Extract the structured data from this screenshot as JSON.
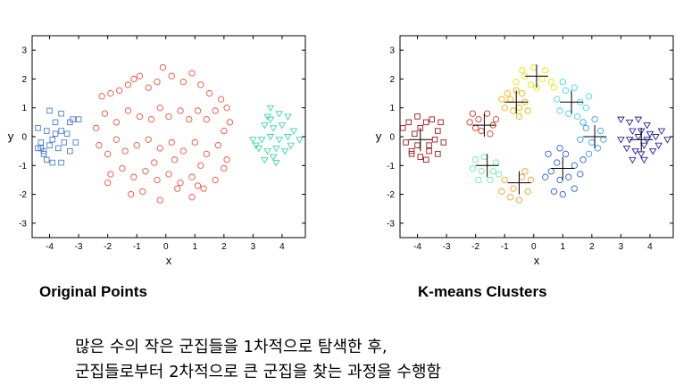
{
  "chart_data": [
    {
      "type": "scatter",
      "title": "Original Points",
      "xlabel": "x",
      "ylabel": "y",
      "xlim": [
        -4.6,
        4.8
      ],
      "ylim": [
        -3.5,
        3.5
      ],
      "xticks": [
        -4,
        -3,
        -2,
        -1,
        0,
        1,
        2,
        3,
        4
      ],
      "yticks": [
        -3,
        -2,
        -1,
        0,
        1,
        2,
        3
      ],
      "grid": false,
      "series": [
        {
          "marker": "square",
          "color": "#4a7bd0",
          "points": [
            [
              -4.3,
              -0.2
            ],
            [
              -4.2,
              -0.5
            ],
            [
              -4.0,
              -0.3
            ],
            [
              -4.3,
              -0.4
            ],
            [
              -3.9,
              -0.1
            ],
            [
              -4.1,
              0.2
            ],
            [
              -4.4,
              0.3
            ],
            [
              -3.8,
              0.5
            ],
            [
              -4.0,
              0.9
            ],
            [
              -3.6,
              0.8
            ],
            [
              -3.3,
              0.5
            ],
            [
              -3.2,
              0.6
            ],
            [
              -3.4,
              0.1
            ],
            [
              -3.6,
              0.2
            ],
            [
              -3.1,
              -0.2
            ],
            [
              -3.3,
              -0.5
            ],
            [
              -3.6,
              -0.9
            ],
            [
              -3.9,
              -0.9
            ],
            [
              -4.2,
              -0.6
            ],
            [
              -3.7,
              -0.4
            ],
            [
              -3.0,
              0.6
            ],
            [
              -3.5,
              -0.2
            ],
            [
              -4.4,
              -0.4
            ],
            [
              -4.1,
              -0.8
            ],
            [
              -3.8,
              0.1
            ]
          ]
        },
        {
          "marker": "circle",
          "color": "#e8553a",
          "points": [
            [
              -2.2,
              1.4
            ],
            [
              -1.9,
              1.5
            ],
            [
              -1.6,
              1.6
            ],
            [
              -1.3,
              1.8
            ],
            [
              -1.1,
              2.0
            ],
            [
              -0.9,
              2.1
            ],
            [
              -0.6,
              1.7
            ],
            [
              -0.3,
              1.9
            ],
            [
              -0.1,
              2.4
            ],
            [
              0.2,
              2.1
            ],
            [
              0.6,
              1.9
            ],
            [
              0.9,
              2.2
            ],
            [
              1.2,
              1.8
            ],
            [
              1.5,
              1.5
            ],
            [
              1.9,
              1.3
            ],
            [
              2.1,
              1.0
            ],
            [
              2.2,
              0.5
            ],
            [
              2.0,
              0.2
            ],
            [
              -2.4,
              0.3
            ],
            [
              -2.1,
              0.8
            ],
            [
              -1.7,
              0.5
            ],
            [
              -1.3,
              0.9
            ],
            [
              -0.9,
              0.7
            ],
            [
              -0.5,
              0.6
            ],
            [
              -0.2,
              1.0
            ],
            [
              0.1,
              0.7
            ],
            [
              0.5,
              0.9
            ],
            [
              0.8,
              0.6
            ],
            [
              1.1,
              0.9
            ],
            [
              1.4,
              0.6
            ],
            [
              1.7,
              0.9
            ],
            [
              -2.3,
              -0.3
            ],
            [
              -2.0,
              -0.6
            ],
            [
              -1.7,
              -0.1
            ],
            [
              -1.4,
              -0.5
            ],
            [
              -1.0,
              -0.3
            ],
            [
              -0.6,
              -0.1
            ],
            [
              -0.2,
              -0.4
            ],
            [
              0.2,
              -0.2
            ],
            [
              0.6,
              -0.5
            ],
            [
              1.0,
              -0.2
            ],
            [
              1.4,
              -0.6
            ],
            [
              1.8,
              -0.3
            ],
            [
              2.1,
              -0.8
            ],
            [
              -1.9,
              -1.3
            ],
            [
              -1.5,
              -1.1
            ],
            [
              -1.1,
              -1.4
            ],
            [
              -0.7,
              -1.2
            ],
            [
              -0.3,
              -1.5
            ],
            [
              0.1,
              -1.3
            ],
            [
              0.5,
              -1.6
            ],
            [
              0.9,
              -1.4
            ],
            [
              1.3,
              -1.8
            ],
            [
              1.7,
              -1.5
            ],
            [
              -1.2,
              -2.0
            ],
            [
              -0.8,
              -1.9
            ],
            [
              -0.2,
              -2.2
            ],
            [
              0.4,
              -1.8
            ],
            [
              0.9,
              -2.1
            ],
            [
              1.1,
              -1.7
            ],
            [
              -2.0,
              -1.6
            ],
            [
              2.0,
              -1.1
            ],
            [
              -0.4,
              -0.9
            ],
            [
              0.3,
              -0.8
            ],
            [
              1.2,
              -1.0
            ]
          ]
        },
        {
          "marker": "triangle-down",
          "color": "#3dd6a0",
          "points": [
            [
              3.6,
              1.0
            ],
            [
              3.5,
              0.7
            ],
            [
              3.9,
              0.8
            ],
            [
              4.2,
              0.7
            ],
            [
              3.4,
              0.4
            ],
            [
              3.7,
              0.3
            ],
            [
              4.0,
              0.4
            ],
            [
              4.4,
              0.2
            ],
            [
              3.0,
              -0.1
            ],
            [
              3.3,
              -0.1
            ],
            [
              3.6,
              0.0
            ],
            [
              3.9,
              -0.1
            ],
            [
              4.2,
              0.0
            ],
            [
              4.6,
              -0.1
            ],
            [
              3.2,
              -0.4
            ],
            [
              3.5,
              -0.5
            ],
            [
              3.8,
              -0.4
            ],
            [
              4.1,
              -0.5
            ],
            [
              3.4,
              -0.8
            ],
            [
              3.8,
              -0.9
            ],
            [
              3.7,
              -0.7
            ],
            [
              3.1,
              -0.3
            ],
            [
              4.3,
              -0.3
            ],
            [
              3.6,
              0.6
            ]
          ]
        }
      ]
    },
    {
      "type": "scatter",
      "title": "K-means Clusters",
      "xlabel": "x",
      "ylabel": "y",
      "xlim": [
        -4.6,
        4.8
      ],
      "ylim": [
        -3.5,
        3.5
      ],
      "xticks": [
        -4,
        -3,
        -2,
        -1,
        0,
        1,
        2,
        3,
        4
      ],
      "yticks": [
        -3,
        -2,
        -1,
        0,
        1,
        2,
        3
      ],
      "grid": false,
      "series": [
        {
          "marker": "square",
          "color": "#a01818",
          "center": [
            -3.9,
            -0.1
          ],
          "points": [
            [
              -4.4,
              -0.2
            ],
            [
              -4.2,
              -0.5
            ],
            [
              -4.0,
              -0.3
            ],
            [
              -4.3,
              0.5
            ],
            [
              -3.9,
              0.3
            ],
            [
              -4.1,
              0.1
            ],
            [
              -4.5,
              0.3
            ],
            [
              -3.7,
              0.5
            ],
            [
              -4.0,
              0.7
            ],
            [
              -3.5,
              0.6
            ],
            [
              -3.3,
              0.2
            ],
            [
              -3.2,
              0.5
            ],
            [
              -3.4,
              -0.1
            ],
            [
              -3.6,
              -0.3
            ],
            [
              -3.1,
              -0.2
            ],
            [
              -3.3,
              -0.6
            ],
            [
              -3.7,
              -0.8
            ],
            [
              -3.9,
              -0.7
            ],
            [
              -4.2,
              -0.6
            ],
            [
              -3.6,
              -0.5
            ]
          ]
        },
        {
          "marker": "circle",
          "color": "#d83a2a",
          "center": [
            -1.7,
            0.4
          ],
          "points": [
            [
              -2.2,
              0.5
            ],
            [
              -1.9,
              0.6
            ],
            [
              -1.6,
              0.8
            ],
            [
              -1.4,
              0.4
            ],
            [
              -1.8,
              0.2
            ],
            [
              -2.0,
              0.3
            ],
            [
              -1.5,
              0.1
            ],
            [
              -1.3,
              0.6
            ],
            [
              -2.1,
              0.8
            ]
          ]
        },
        {
          "marker": "circle",
          "color": "#f0b400",
          "center": [
            -0.6,
            1.2
          ],
          "points": [
            [
              -1.0,
              1.0
            ],
            [
              -0.8,
              1.3
            ],
            [
              -0.5,
              1.0
            ],
            [
              -0.3,
              1.2
            ],
            [
              -0.7,
              0.9
            ],
            [
              -0.4,
              1.5
            ],
            [
              -0.9,
              1.5
            ],
            [
              -0.2,
              0.9
            ],
            [
              -1.1,
              1.3
            ],
            [
              -0.6,
              1.6
            ],
            [
              -0.5,
              0.7
            ]
          ]
        },
        {
          "marker": "circle",
          "color": "#e8e800",
          "center": [
            0.1,
            2.1
          ],
          "points": [
            [
              -0.6,
              1.9
            ],
            [
              -0.3,
              2.1
            ],
            [
              0.0,
              2.4
            ],
            [
              0.3,
              2.0
            ],
            [
              0.6,
              1.9
            ],
            [
              -0.1,
              1.8
            ],
            [
              0.4,
              2.3
            ],
            [
              -0.4,
              2.3
            ],
            [
              0.7,
              1.7
            ],
            [
              0.1,
              1.7
            ]
          ]
        },
        {
          "marker": "circle",
          "color": "#40d8f0",
          "center": [
            1.3,
            1.2
          ],
          "points": [
            [
              0.8,
              1.3
            ],
            [
              1.1,
              1.6
            ],
            [
              1.4,
              1.7
            ],
            [
              1.6,
              1.2
            ],
            [
              1.8,
              1.0
            ],
            [
              1.2,
              0.8
            ],
            [
              0.9,
              0.9
            ],
            [
              1.5,
              0.7
            ],
            [
              1.0,
              1.9
            ],
            [
              1.9,
              1.4
            ]
          ]
        },
        {
          "marker": "circle",
          "color": "#3aa0f0",
          "center": [
            2.1,
            0.0
          ],
          "points": [
            [
              1.8,
              0.3
            ],
            [
              2.0,
              -0.2
            ],
            [
              2.3,
              0.2
            ],
            [
              2.2,
              -0.4
            ],
            [
              1.9,
              -0.6
            ],
            [
              2.1,
              0.6
            ],
            [
              1.6,
              -0.1
            ],
            [
              2.4,
              -0.1
            ],
            [
              1.7,
              0.5
            ]
          ]
        },
        {
          "marker": "circle",
          "color": "#2a60d8",
          "center": [
            1.0,
            -1.1
          ],
          "points": [
            [
              0.5,
              -0.6
            ],
            [
              0.8,
              -0.9
            ],
            [
              1.1,
              -0.6
            ],
            [
              1.4,
              -1.0
            ],
            [
              0.6,
              -1.2
            ],
            [
              0.9,
              -1.5
            ],
            [
              1.2,
              -1.4
            ],
            [
              1.6,
              -1.3
            ],
            [
              0.7,
              -1.9
            ],
            [
              1.0,
              -2.0
            ],
            [
              1.4,
              -1.8
            ],
            [
              0.4,
              -1.4
            ],
            [
              1.7,
              -0.8
            ],
            [
              0.9,
              -0.4
            ]
          ]
        },
        {
          "marker": "circle",
          "color": "#70e8a8",
          "center": [
            -1.6,
            -1.0
          ],
          "points": [
            [
              -2.0,
              -0.8
            ],
            [
              -1.7,
              -0.7
            ],
            [
              -1.4,
              -1.2
            ],
            [
              -1.8,
              -1.2
            ],
            [
              -1.3,
              -0.9
            ],
            [
              -2.1,
              -1.1
            ],
            [
              -1.5,
              -1.5
            ],
            [
              -1.9,
              -1.5
            ],
            [
              -1.2,
              -1.3
            ]
          ]
        },
        {
          "marker": "circle",
          "color": "#f0a030",
          "center": [
            -0.5,
            -1.6
          ],
          "points": [
            [
              -1.0,
              -1.5
            ],
            [
              -0.7,
              -1.8
            ],
            [
              -0.4,
              -1.4
            ],
            [
              -0.2,
              -1.9
            ],
            [
              -0.8,
              -2.1
            ],
            [
              -0.5,
              -2.2
            ],
            [
              -0.1,
              -1.5
            ],
            [
              -1.1,
              -1.9
            ],
            [
              -0.3,
              -1.2
            ]
          ]
        },
        {
          "marker": "triangle-down",
          "color": "#2020a0",
          "center": [
            3.7,
            -0.1
          ],
          "points": [
            [
              3.0,
              0.6
            ],
            [
              3.3,
              0.5
            ],
            [
              3.6,
              0.6
            ],
            [
              3.9,
              0.4
            ],
            [
              3.4,
              0.2
            ],
            [
              3.7,
              0.2
            ],
            [
              4.0,
              0.1
            ],
            [
              4.4,
              0.2
            ],
            [
              3.0,
              -0.1
            ],
            [
              3.3,
              -0.1
            ],
            [
              3.6,
              0.0
            ],
            [
              3.9,
              -0.1
            ],
            [
              4.2,
              0.0
            ],
            [
              4.6,
              -0.1
            ],
            [
              3.2,
              -0.4
            ],
            [
              3.5,
              -0.5
            ],
            [
              3.8,
              -0.3
            ],
            [
              4.1,
              -0.5
            ],
            [
              3.4,
              -0.8
            ],
            [
              3.8,
              -0.8
            ],
            [
              3.7,
              -0.6
            ],
            [
              4.3,
              -0.3
            ]
          ]
        }
      ]
    }
  ],
  "captions": {
    "left": "Original Points",
    "right": "K-means Clusters"
  },
  "description": {
    "line1": "많은 수의 작은 군집들을 1차적으로 탐색한 후,",
    "line2": "군집들로부터 2차적으로 큰 군집을 찾는 과정을 수행함"
  }
}
